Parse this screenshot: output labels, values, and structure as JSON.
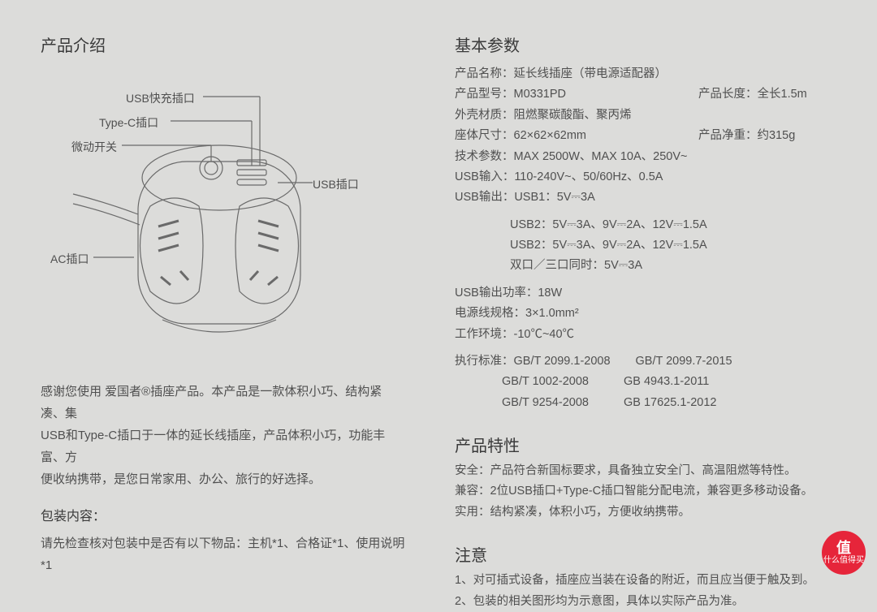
{
  "left": {
    "title": "产品介绍",
    "diagram": {
      "labels": {
        "usb_fast": "USB快充插口",
        "typec": "Type-C插口",
        "switch": "微动开关",
        "usb": "USB插口",
        "ac": "AC插口"
      },
      "stroke": "#6a6a6a",
      "stroke_width": 1.2
    },
    "desc_lines": [
      "感谢您使用 爱国者®插座产品。本产品是一款体积小巧、结构紧凑、集",
      "USB和Type-C插口于一体的延长线插座，产品体积小巧，功能丰富、方",
      "便收纳携带，是您日常家用、办公、旅行的好选择。"
    ],
    "pkg_title": "包装内容：",
    "pkg_text": "请先检查核对包装中是否有以下物品：主机*1、合格证*1、使用说明*1"
  },
  "right": {
    "spec_title": "基本参数",
    "specs": [
      {
        "k": "产品名称",
        "v": "延长线插座（带电源适配器）"
      },
      {
        "k": "产品型号",
        "v": "M0331PD",
        "k2": "产品长度",
        "v2": "全长1.5m"
      },
      {
        "k": "外壳材质",
        "v": "阻燃聚碳酸酯、聚丙烯"
      },
      {
        "k": "座体尺寸",
        "v": "62×62×62mm",
        "k2": "产品净重",
        "v2": "约315g"
      },
      {
        "k": "技术参数",
        "v": "MAX 2500W、MAX 10A、250V~"
      },
      {
        "k": "USB输入",
        "v": "110-240V~、50/60Hz、0.5A"
      },
      {
        "k": "USB输出",
        "v": "USB1：5V⎓3A"
      }
    ],
    "usb_extra": [
      "USB2：5V⎓3A、9V⎓2A、12V⎓1.5A",
      "USB2：5V⎓3A、9V⎓2A、12V⎓1.5A",
      "双口／三口同时：5V⎓3A"
    ],
    "specs2": [
      {
        "k": "USB输出功率",
        "v": "18W"
      },
      {
        "k": "电源线规格",
        "v": "3×1.0mm²"
      },
      {
        "k": "工作环境",
        "v": "-10℃~40℃"
      }
    ],
    "std_label": "执行标准",
    "std_rows": [
      [
        "GB/T 2099.1-2008",
        "GB/T 2099.7-2015"
      ],
      [
        "GB/T 1002-2008",
        "GB 4943.1-2011"
      ],
      [
        "GB/T 9254-2008",
        "GB 17625.1-2012"
      ]
    ],
    "feat_title": "产品特性",
    "feats": [
      {
        "k": "安全",
        "v": "产品符合新国标要求，具备独立安全门、高温阻燃等特性。"
      },
      {
        "k": "兼容",
        "v": "2位USB插口+Type-C插口智能分配电流，兼容更多移动设备。"
      },
      {
        "k": "实用",
        "v": "结构紧凑，体积小巧，方便收纳携带。"
      }
    ],
    "note_title": "注意",
    "notes": [
      "1、对可插式设备，插座应当装在设备的附近，而且应当便于触及到。",
      "2、包装的相关图形均为示意图，具体以实际产品为准。"
    ]
  },
  "watermark": {
    "char": "值",
    "text": "什么值得买"
  },
  "colors": {
    "bg": "#dcdcda",
    "text": "#4a4a4a",
    "title": "#3a3a3a",
    "accent": "#e6253a"
  }
}
